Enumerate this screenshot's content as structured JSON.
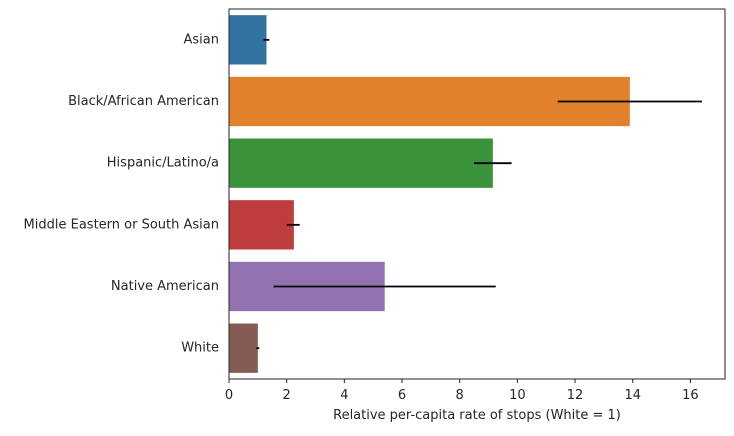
{
  "chart_data": {
    "type": "bar",
    "orientation": "horizontal",
    "title": "",
    "xlabel": "Relative per-capita rate of stops (White = 1)",
    "ylabel": "",
    "xlim": [
      0,
      17.2
    ],
    "x_ticks": [
      0,
      2,
      4,
      6,
      8,
      10,
      12,
      14,
      16
    ],
    "grid": false,
    "categories": [
      "Asian",
      "Black/African American",
      "Hispanic/Latino/a",
      "Middle Eastern or South Asian",
      "Native American",
      "White"
    ],
    "values": [
      1.3,
      13.9,
      9.15,
      2.25,
      5.4,
      1.0
    ],
    "error_low": [
      1.2,
      11.4,
      8.5,
      2.0,
      1.55,
      0.95
    ],
    "error_high": [
      1.4,
      16.4,
      9.8,
      2.45,
      9.25,
      1.05
    ],
    "colors": [
      "#3274a1",
      "#e1812c",
      "#3a923a",
      "#c03d3e",
      "#9372b2",
      "#845b53"
    ]
  }
}
